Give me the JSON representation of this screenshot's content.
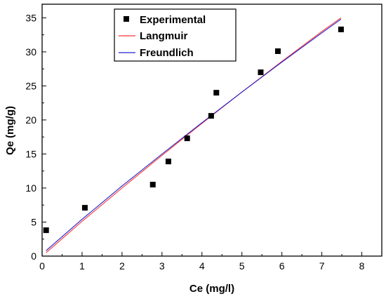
{
  "chart_data": {
    "type": "scatter",
    "xlabel": "Ce (mg/l)",
    "ylabel": "Qe (mg/g)",
    "xlim": [
      0,
      8.5
    ],
    "ylim": [
      0,
      37
    ],
    "xticks": [
      0,
      1,
      2,
      3,
      4,
      5,
      6,
      7,
      8
    ],
    "yticks": [
      0,
      5,
      10,
      15,
      20,
      25,
      30,
      35
    ],
    "grid": false,
    "legend_position": "top-center",
    "series": [
      {
        "name": "Experimental",
        "kind": "scatter",
        "marker": "square",
        "color": "#000000",
        "x": [
          0.1,
          1.07,
          2.77,
          3.16,
          3.63,
          4.23,
          4.36,
          5.47,
          5.9,
          7.48
        ],
        "y": [
          3.8,
          7.1,
          10.5,
          13.9,
          17.3,
          20.6,
          24.0,
          27.0,
          30.1,
          33.3
        ]
      },
      {
        "name": "Langmuir",
        "kind": "line",
        "color": "#ff3333",
        "x": [
          0.1,
          1,
          2,
          3,
          4,
          5,
          6,
          7,
          7.48
        ],
        "y": [
          0.5,
          5.1,
          10.0,
          14.8,
          19.5,
          24.1,
          28.6,
          33.0,
          35.0
        ]
      },
      {
        "name": "Freundlich",
        "kind": "line",
        "color": "#2222cc",
        "x": [
          0.1,
          1,
          2,
          3,
          4,
          5,
          6,
          7,
          7.48
        ],
        "y": [
          0.8,
          5.4,
          10.3,
          15.0,
          19.6,
          24.1,
          28.5,
          32.8,
          34.8
        ]
      }
    ]
  }
}
